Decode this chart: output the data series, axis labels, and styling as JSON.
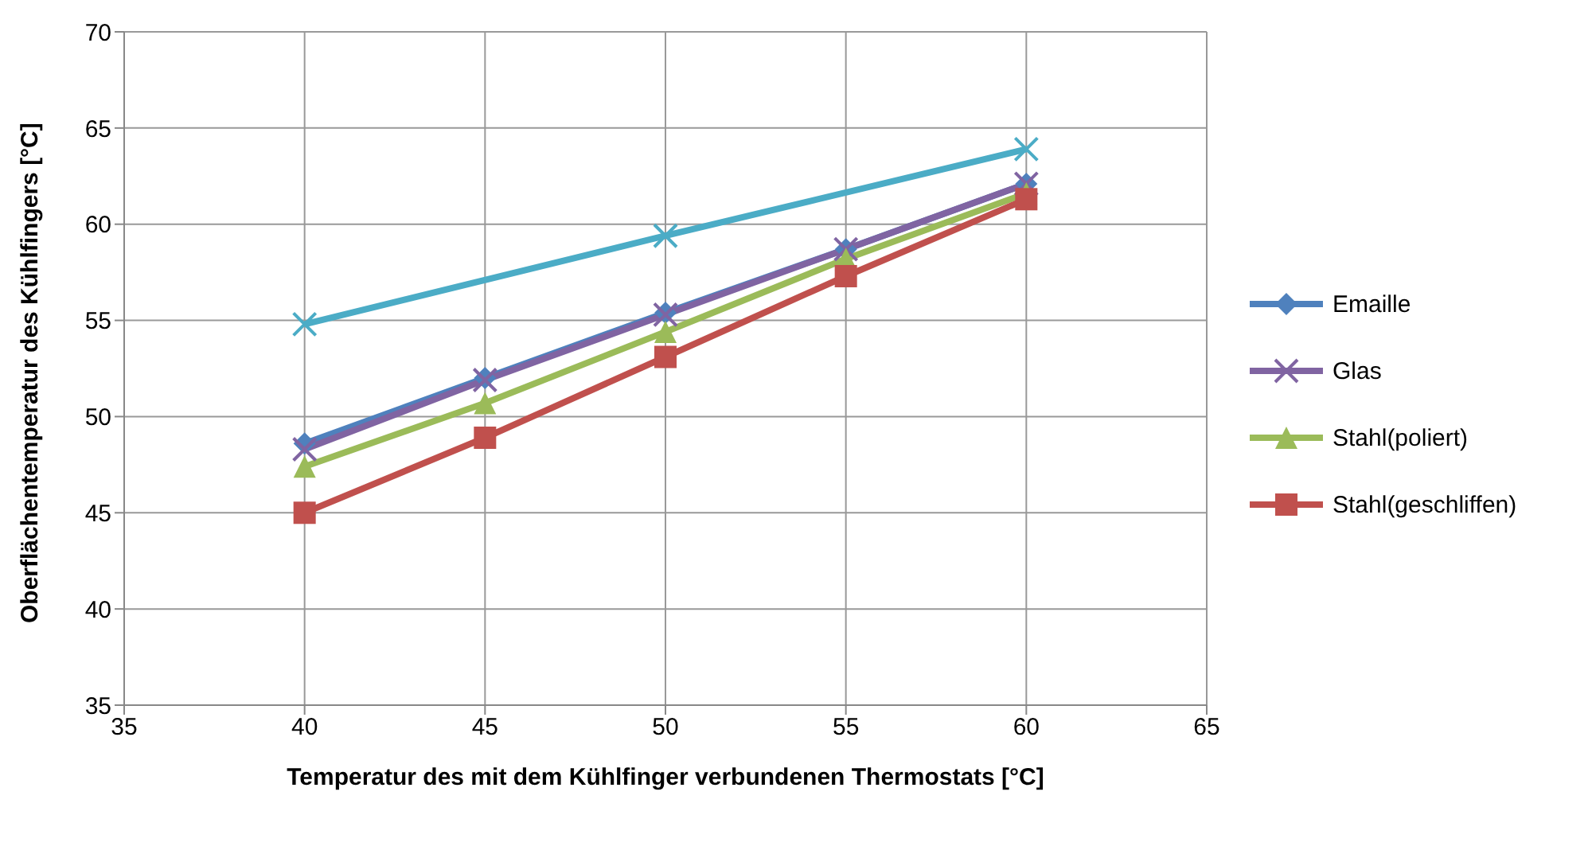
{
  "chart_data": {
    "type": "line",
    "xlabel": "Temperatur des mit dem Kühlfinger verbundenen Thermostats [°C]",
    "ylabel": "Oberflächentemperatur des Kühlfingers [°C]",
    "xlim": [
      35,
      65
    ],
    "xticks": [
      35,
      40,
      45,
      50,
      55,
      60,
      65
    ],
    "ylim": [
      35,
      70
    ],
    "yticks": [
      35,
      40,
      45,
      50,
      55,
      60,
      65,
      70
    ],
    "grid": true,
    "legend": "right",
    "line_style": "solid",
    "series": [
      {
        "color": "#4bacc6",
        "marker": "cross",
        "x": [
          40,
          50,
          60
        ],
        "values": [
          54.8,
          59.4,
          63.9
        ]
      },
      {
        "name": "Emaille",
        "color": "#4f81bd",
        "marker": "diamond",
        "x": [
          40,
          45,
          50,
          55,
          60
        ],
        "values": [
          48.6,
          52,
          55.4,
          58.7,
          62.1
        ]
      },
      {
        "name": "Glas",
        "color": "#8064a2",
        "marker": "cross",
        "x": [
          40,
          45,
          50,
          55,
          60
        ],
        "values": [
          48.3,
          51.9,
          55.3,
          58.7,
          62.1
        ]
      },
      {
        "name": "Stahl(poliert)",
        "color": "#9bbb59",
        "marker": "triangle",
        "x": [
          40,
          45,
          50,
          55,
          60
        ],
        "values": [
          47.4,
          50.7,
          54.4,
          58.2,
          61.6
        ]
      },
      {
        "name": "Stahl(geschliffen)",
        "color": "#c0504d",
        "marker": "square",
        "x": [
          40,
          45,
          50,
          55,
          60
        ],
        "values": [
          45,
          48.9,
          53.1,
          57.3,
          61.3
        ]
      }
    ]
  }
}
